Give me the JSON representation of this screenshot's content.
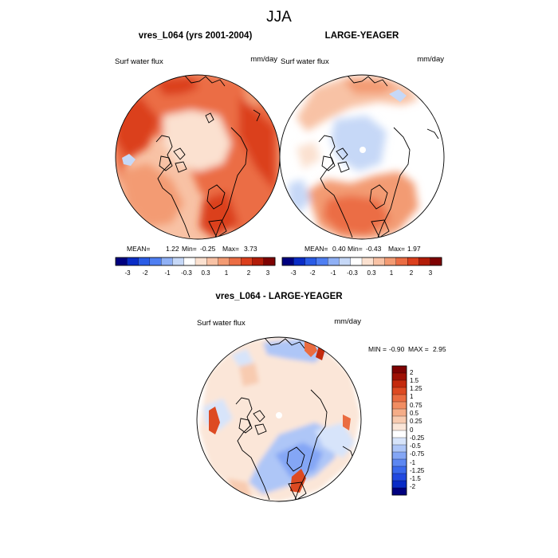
{
  "title": "JJA",
  "colors": {
    "ocean": "#ffffff",
    "coast": "#000000",
    "ramp13": [
      "#00007f",
      "#0a2cc6",
      "#2a5ce6",
      "#4f7ff2",
      "#8fb0f5",
      "#c6d8f7",
      "#ffffff",
      "#fbe1d0",
      "#f8c2a5",
      "#f39b73",
      "#eb6d44",
      "#db3f1d",
      "#b21c08",
      "#7e0202"
    ],
    "ramp17": [
      "#00007f",
      "#0a2cc6",
      "#2149e0",
      "#3a69ec",
      "#5c87f2",
      "#84a6f5",
      "#aec6f7",
      "#d7e4fa",
      "#ffffff",
      "#fbe6d8",
      "#f8cbb0",
      "#f5ad88",
      "#f18d62",
      "#ea6c41",
      "#dd4a22",
      "#c42a0d",
      "#9e1004",
      "#7e0202"
    ]
  },
  "chart_data": [
    {
      "type": "heatmap",
      "projection": "north-polar-stereographic",
      "title": "vres_L064 (yrs 2001-2004)",
      "left_label": "Surf water flux",
      "right_label": "mm/day",
      "stats": {
        "mean_label": "MEAN=",
        "mean": "1.22",
        "min_label": "Min=",
        "min": "-0.25",
        "max_label": "Max=",
        "max": "3.73"
      },
      "colorbar": {
        "orientation": "horizontal",
        "levels": [
          -3,
          -2,
          -1,
          -0.3,
          0.3,
          1,
          2,
          3
        ],
        "tick_labels": [
          "-3",
          "-2",
          "-1",
          "-0.3",
          "0.3",
          "1",
          "2",
          "3"
        ]
      }
    },
    {
      "type": "heatmap",
      "projection": "north-polar-stereographic",
      "title": "LARGE-YEAGER",
      "left_label": "Surf water flux",
      "right_label": "mm/day",
      "stats": {
        "mean_label": "MEAN=",
        "mean": "0.40",
        "min_label": "Min=",
        "min": "-0.43",
        "max_label": "Max=",
        "max": "1.97"
      },
      "colorbar": {
        "orientation": "horizontal",
        "levels": [
          -3,
          -2,
          -1,
          -0.3,
          0.3,
          1,
          2,
          3
        ],
        "tick_labels": [
          "-3",
          "-2",
          "-1",
          "-0.3",
          "0.3",
          "1",
          "2",
          "3"
        ]
      }
    },
    {
      "type": "heatmap",
      "projection": "north-polar-stereographic",
      "title": "vres_L064 - LARGE-YEAGER",
      "left_label": "Surf water flux",
      "right_label": "mm/day",
      "stats": {
        "min_label": "MIN =",
        "min": "-0.90",
        "max_label": "MAX =",
        "max": "2.95"
      },
      "colorbar": {
        "orientation": "vertical",
        "levels": [
          2,
          1.5,
          1.25,
          1,
          0.75,
          0.5,
          0.25,
          0,
          -0.25,
          -0.5,
          -0.75,
          -1,
          -1.25,
          -1.5,
          -2
        ],
        "tick_labels": [
          "2",
          "1.5",
          "1.25",
          "1",
          "0.75",
          "0.5",
          "0.25",
          "0",
          "-0.25",
          "-0.5",
          "-0.75",
          "-1",
          "-1.25",
          "-1.5",
          "-2"
        ]
      }
    }
  ]
}
